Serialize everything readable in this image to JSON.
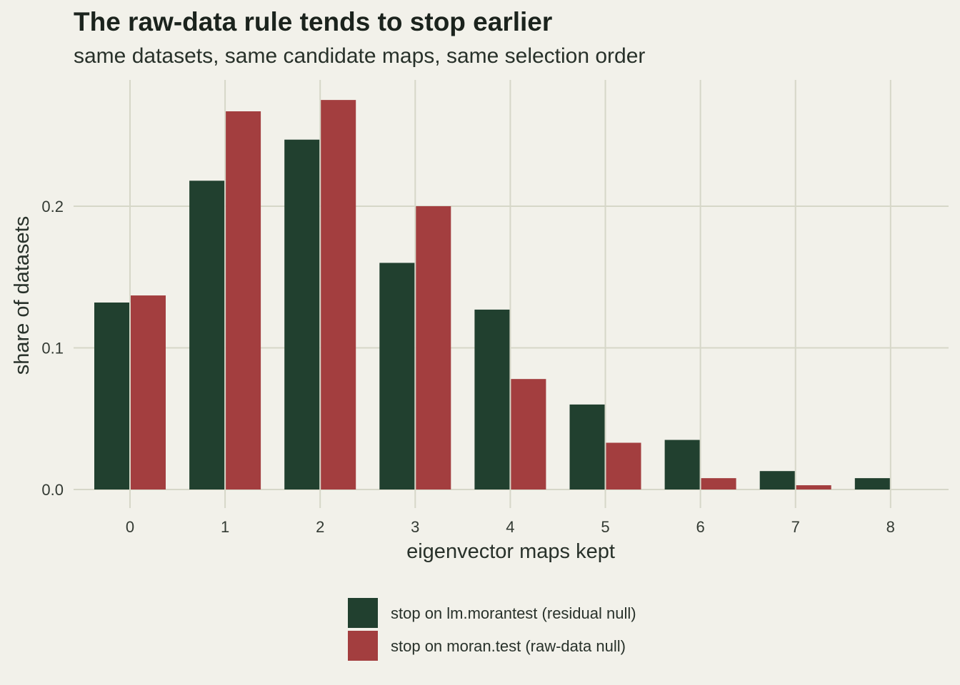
{
  "chart_data": {
    "type": "bar",
    "title": "The raw-data rule tends to stop earlier",
    "subtitle": "same datasets, same candidate maps, same selection order",
    "xlabel": "eigenvector maps kept",
    "ylabel": "share of datasets",
    "categories": [
      "0",
      "1",
      "2",
      "3",
      "4",
      "5",
      "6",
      "7",
      "8"
    ],
    "yticks": [
      "0.0",
      "0.1",
      "0.2"
    ],
    "ylim": [
      0,
      0.29
    ],
    "grid": true,
    "legend_position": "bottom",
    "series": [
      {
        "name": "stop on lm.morantest (residual null)",
        "color": "#21402f",
        "values": [
          0.132,
          0.218,
          0.247,
          0.16,
          0.127,
          0.06,
          0.035,
          0.013,
          0.008
        ]
      },
      {
        "name": "stop on moran.test (raw-data null)",
        "color": "#a33e3f",
        "values": [
          0.137,
          0.267,
          0.275,
          0.2,
          0.078,
          0.033,
          0.008,
          0.003,
          0.0
        ]
      }
    ]
  }
}
